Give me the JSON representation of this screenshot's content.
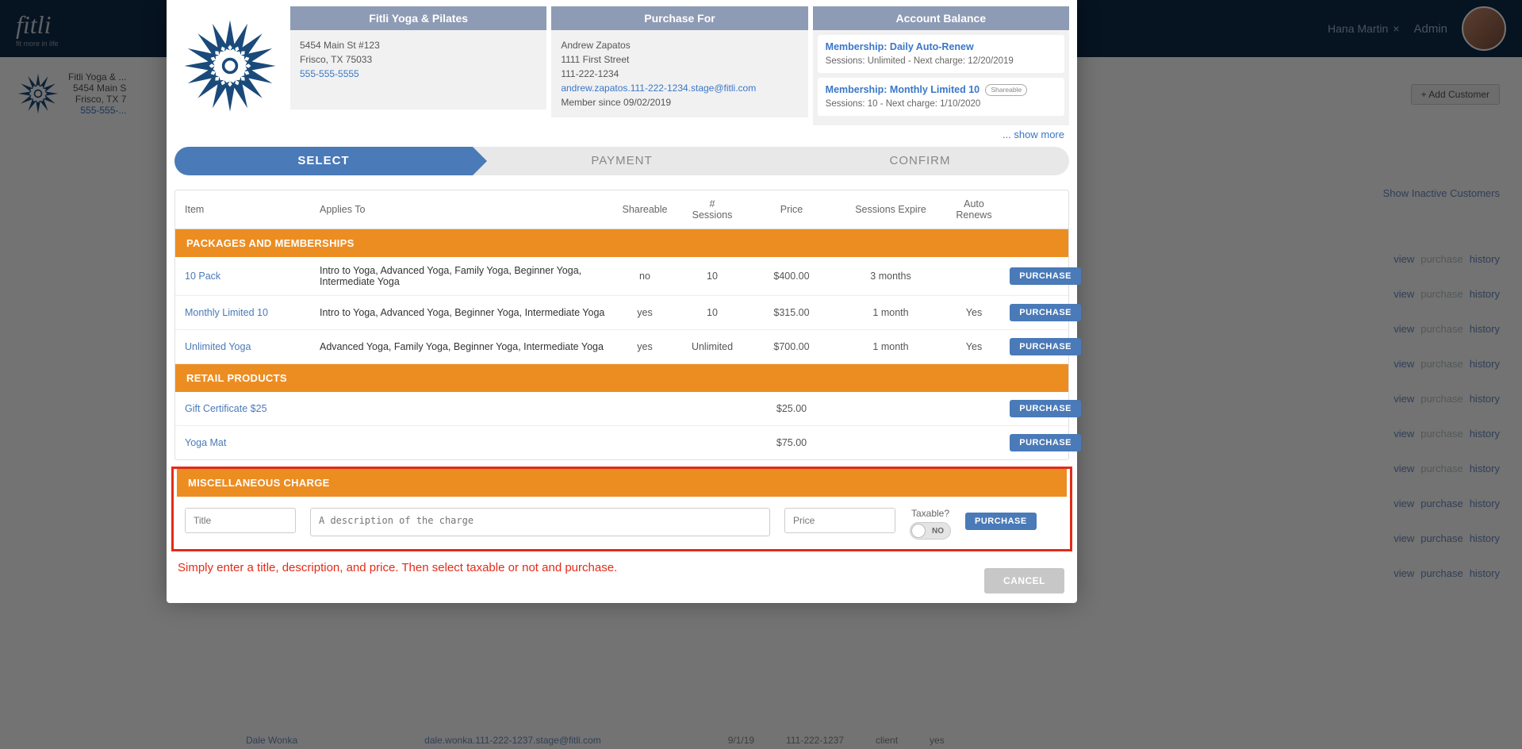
{
  "topbar": {
    "logo": "fitli",
    "tagline": "fit more in life",
    "user_name": "Hana Martin",
    "role": "Admin"
  },
  "bg": {
    "biz_name": "Fitli Yoga & ...",
    "biz_addr": "5454 Main S",
    "biz_city": "Frisco, TX 7",
    "biz_phone": "555-555-...",
    "add_customer": "+ Add Customer",
    "show_inactive": "Show Inactive Customers",
    "row_links": {
      "view": "view",
      "purchase": "purchase",
      "history": "history"
    },
    "bottom": {
      "name": "Dale Wonka",
      "email": "dale.wonka.111-222-1237.stage@fitli.com",
      "date": "9/1/19",
      "phone": "111-222-1237",
      "role": "client",
      "active": "yes"
    }
  },
  "modal": {
    "business": {
      "title": "Fitli Yoga & Pilates",
      "addr1": "5454 Main St #123",
      "addr2": "Frisco, TX 75033",
      "phone": "555-555-5555"
    },
    "purchase_for": {
      "title": "Purchase For",
      "name": "Andrew Zapatos",
      "addr": "1111 First Street",
      "phone": "111-222-1234",
      "email": "andrew.zapatos.111-222-1234.stage@fitli.com",
      "member_since": "Member since 09/02/2019"
    },
    "balance": {
      "title": "Account Balance",
      "items": [
        {
          "title": "Membership: Daily Auto-Renew",
          "sub": "Sessions: Unlimited  -   Next charge: 12/20/2019",
          "shareable": false
        },
        {
          "title": "Membership: Monthly Limited 10",
          "sub": "Sessions: 10  -   Next charge: 1/10/2020",
          "shareable": true,
          "badge": "Shareable"
        }
      ],
      "show_more": "... show more"
    },
    "steps": [
      "SELECT",
      "PAYMENT",
      "CONFIRM"
    ],
    "active_step": 0,
    "columns": {
      "item": "Item",
      "applies": "Applies To",
      "shareable": "Shareable",
      "sessions_top": "#",
      "sessions_bot": "Sessions",
      "price": "Price",
      "expire": "Sessions Expire",
      "auto_top": "Auto",
      "auto_bot": "Renews"
    },
    "sections": {
      "packages": {
        "header": "PACKAGES AND MEMBERSHIPS",
        "rows": [
          {
            "name": "10 Pack",
            "applies": "Intro to Yoga, Advanced Yoga, Family Yoga, Beginner Yoga, Intermediate Yoga",
            "shareable": "no",
            "sessions": "10",
            "price": "$400.00",
            "expire": "3 months",
            "auto": ""
          },
          {
            "name": "Monthly Limited 10",
            "applies": "Intro to Yoga, Advanced Yoga, Beginner Yoga, Intermediate Yoga",
            "shareable": "yes",
            "sessions": "10",
            "price": "$315.00",
            "expire": "1 month",
            "auto": "Yes"
          },
          {
            "name": "Unlimited Yoga",
            "applies": "Advanced Yoga, Family Yoga, Beginner Yoga, Intermediate Yoga",
            "shareable": "yes",
            "sessions": "Unlimited",
            "price": "$700.00",
            "expire": "1 month",
            "auto": "Yes"
          }
        ]
      },
      "retail": {
        "header": "RETAIL PRODUCTS",
        "rows": [
          {
            "name": "Gift Certificate $25",
            "applies": "",
            "shareable": "",
            "sessions": "",
            "price": "$25.00",
            "expire": "",
            "auto": ""
          },
          {
            "name": "Yoga Mat",
            "applies": "",
            "shareable": "",
            "sessions": "",
            "price": "$75.00",
            "expire": "",
            "auto": ""
          }
        ]
      },
      "misc": {
        "header": "MISCELLANEOUS CHARGE",
        "title_ph": "Title",
        "desc_ph": "A description of the charge",
        "price_ph": "Price",
        "taxable_label": "Taxable?",
        "toggle_label": "NO"
      }
    },
    "purchase_btn": "PURCHASE",
    "cancel_btn": "CANCEL",
    "hint": "Simply enter a title, description, and price. Then select taxable or not and purchase."
  },
  "colors": {
    "topbar_bg": "#0f2c4a",
    "step_active": "#4a7ab8",
    "step_inactive": "#e8e8e8",
    "section_hdr": "#ec8d22",
    "link": "#3a77c8",
    "highlight_border": "#e32b18",
    "purchase_btn": "#4a7ab8",
    "cancel_btn": "#c7c7c7"
  }
}
